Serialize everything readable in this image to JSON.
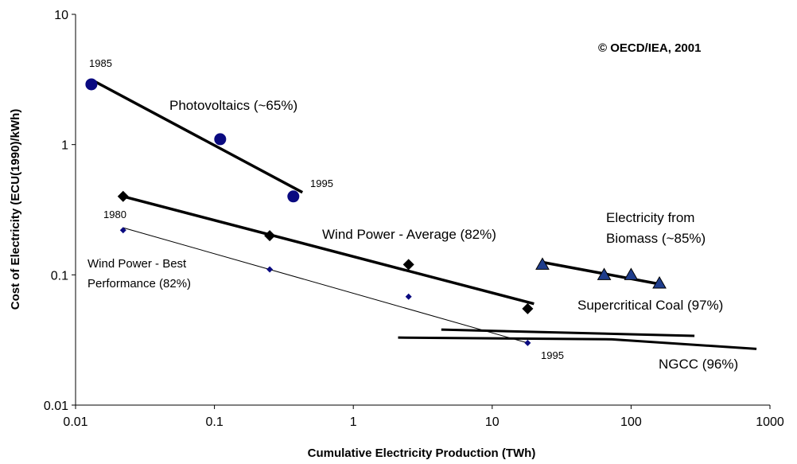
{
  "chart_data": {
    "type": "scatter",
    "x_label": "Cumulative Electricity Production (TWh)",
    "y_label": "Cost of Electricity (ECU(1990)/kWh)",
    "xscale": "log",
    "yscale": "log",
    "xlim": [
      0.01,
      1000
    ],
    "ylim": [
      0.01,
      10
    ],
    "xticks": [
      0.01,
      0.1,
      1,
      10,
      100,
      1000
    ],
    "yticks": [
      0.01,
      0.1,
      1,
      10
    ],
    "grid": false,
    "series": [
      {
        "color": "#0a0a80",
        "marker": "circle",
        "x": [
          0.013,
          0.11,
          0.37
        ],
        "values": [
          2.9,
          1.1,
          0.4
        ]
      },
      {
        "color": "#000000",
        "marker": "diamond",
        "x": [
          0.022,
          0.25,
          2.5,
          18
        ],
        "values": [
          0.4,
          0.2,
          0.12,
          0.055
        ]
      },
      {
        "color": "#0a0a80",
        "marker": "small-diamond",
        "x": [
          0.022,
          0.25,
          2.5,
          18
        ],
        "values": [
          0.22,
          0.11,
          0.068,
          0.03
        ]
      },
      {
        "color": "#1f3d8c",
        "marker": "triangle",
        "x": [
          23,
          64,
          100,
          160
        ],
        "values": [
          0.12,
          0.1,
          0.1,
          0.086
        ]
      }
    ],
    "lines": [
      {
        "color": "#000000",
        "width": 3.5,
        "x": [
          0.013,
          0.43
        ],
        "values": [
          3.15,
          0.43
        ]
      },
      {
        "color": "#000000",
        "width": 3.5,
        "x": [
          0.022,
          20
        ],
        "values": [
          0.4,
          0.06
        ]
      },
      {
        "color": "#000000",
        "width": 1,
        "x": [
          0.022,
          18
        ],
        "values": [
          0.23,
          0.03
        ]
      },
      {
        "color": "#000000",
        "width": 3.5,
        "x": [
          23,
          170
        ],
        "values": [
          0.125,
          0.084
        ]
      },
      {
        "color": "#000000",
        "width": 3,
        "x": [
          4.3,
          286
        ],
        "values": [
          0.038,
          0.034
        ]
      },
      {
        "color": "#000000",
        "width": 3,
        "x": [
          2.1,
          73,
          800
        ],
        "values": [
          0.033,
          0.032,
          0.027
        ]
      }
    ],
    "annotations": [
      "1985",
      "Photovoltaics (~65%)",
      "1995",
      "1980",
      "Wind Power - Average (82%)",
      "Wind Power - Best",
      "Performance (82%)",
      "1995",
      "Electricity from",
      "Biomass (~85%)",
      "Supercritical Coal (97%)",
      "NGCC (96%)",
      "© OECD/IEA, 2001"
    ]
  }
}
